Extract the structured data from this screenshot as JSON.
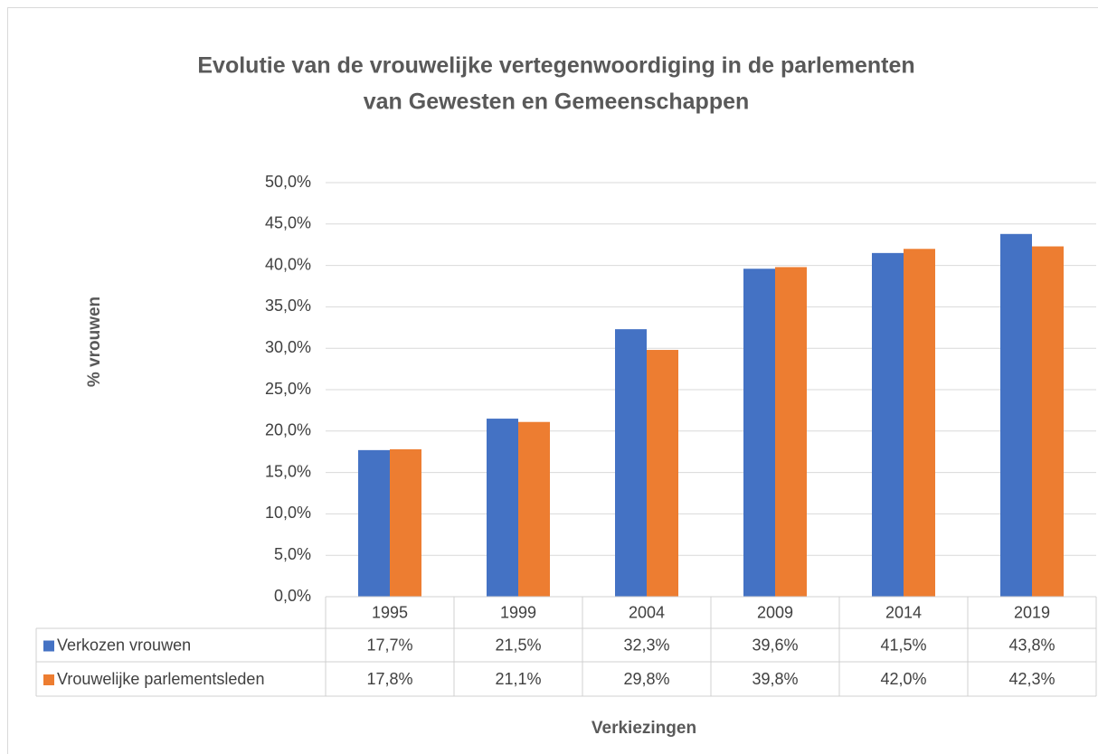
{
  "chart_data": {
    "type": "bar",
    "title": "Evolutie van de vrouwelijke vertegenwoordiging in de parlementen",
    "subtitle": "van Gewesten en Gemeenschappen",
    "y_label": "% vrouwen",
    "x_label": "Verkiezingen",
    "categories": [
      "1995",
      "1999",
      "2004",
      "2009",
      "2014",
      "2019"
    ],
    "series": [
      {
        "name": "Verkozen vrouwen",
        "color": "#4472c4",
        "values": [
          17.7,
          21.5,
          32.3,
          39.6,
          41.5,
          43.8
        ],
        "value_labels": [
          "17,7%",
          "21,5%",
          "32,3%",
          "39,6%",
          "41,5%",
          "43,8%"
        ]
      },
      {
        "name": "Vrouwelijke parlementsleden",
        "color": "#ed7d31",
        "values": [
          17.8,
          21.1,
          29.8,
          39.8,
          42.0,
          42.3
        ],
        "value_labels": [
          "17,8%",
          "21,1%",
          "29,8%",
          "39,8%",
          "42,0%",
          "42,3%"
        ]
      }
    ],
    "ylim": [
      0,
      50
    ],
    "yticks": [
      {
        "value": 0,
        "label": "0,0%"
      },
      {
        "value": 5,
        "label": "5,0%"
      },
      {
        "value": 10,
        "label": "10,0%"
      },
      {
        "value": 15,
        "label": "15,0%"
      },
      {
        "value": 20,
        "label": "20,0%"
      },
      {
        "value": 25,
        "label": "25,0%"
      },
      {
        "value": 30,
        "label": "30,0%"
      },
      {
        "value": 35,
        "label": "35,0%"
      },
      {
        "value": 40,
        "label": "40,0%"
      },
      {
        "value": 45,
        "label": "45,0%"
      },
      {
        "value": 50,
        "label": "50,0%"
      }
    ],
    "grid": true
  }
}
